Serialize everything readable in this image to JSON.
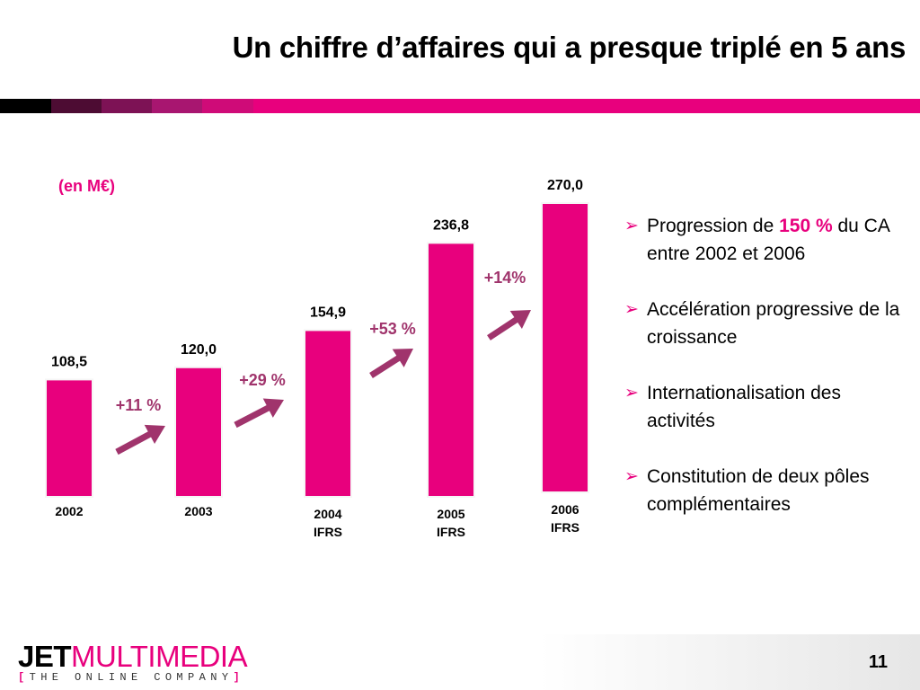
{
  "slide": {
    "title": "Un chiffre d’affaires qui a presque triplé en 5 ans",
    "page_number": "11",
    "unit_label": "(en M€)",
    "colors": {
      "accent": "#e8007d",
      "arrow": "#a0346c",
      "growth_text": "#a0346c",
      "dark": "#1a0010"
    }
  },
  "chart_data": {
    "type": "bar",
    "categories": [
      "2002",
      "2003",
      "2004",
      "2005",
      "2006"
    ],
    "category_sublabels": [
      "",
      "",
      "IFRS",
      "IFRS",
      "IFRS"
    ],
    "values": [
      108.5,
      120.0,
      154.9,
      236.8,
      270.0
    ],
    "data_labels": [
      "108,5",
      "120,0",
      "154,9",
      "236,8",
      "270,0"
    ],
    "growth": [
      "+11 %",
      "+29 %",
      "+53 %",
      "+14%"
    ],
    "unit": "(en M€)",
    "ylim": [
      0,
      270
    ],
    "grid": false,
    "legend": "none"
  },
  "bullets": [
    {
      "parts": [
        {
          "text": "Progression de ",
          "hl": false
        },
        {
          "text": "150 %",
          "hl": true
        },
        {
          "text": " du CA entre 2002 et 2006",
          "hl": false
        }
      ]
    },
    {
      "parts": [
        {
          "text": "Accélération progressive de la croissance",
          "hl": false
        }
      ]
    },
    {
      "parts": [
        {
          "text": "Internationalisation des activités",
          "hl": false
        }
      ]
    },
    {
      "parts": [
        {
          "text": "Constitution de deux pôles complémentaires",
          "hl": false
        }
      ]
    }
  ],
  "logo": {
    "jet": "JET",
    "multimedia": "MULTIMEDIA",
    "tagline": "THE ONLINE COMPANY",
    "bracket_open": "[",
    "bracket_close": "]"
  }
}
